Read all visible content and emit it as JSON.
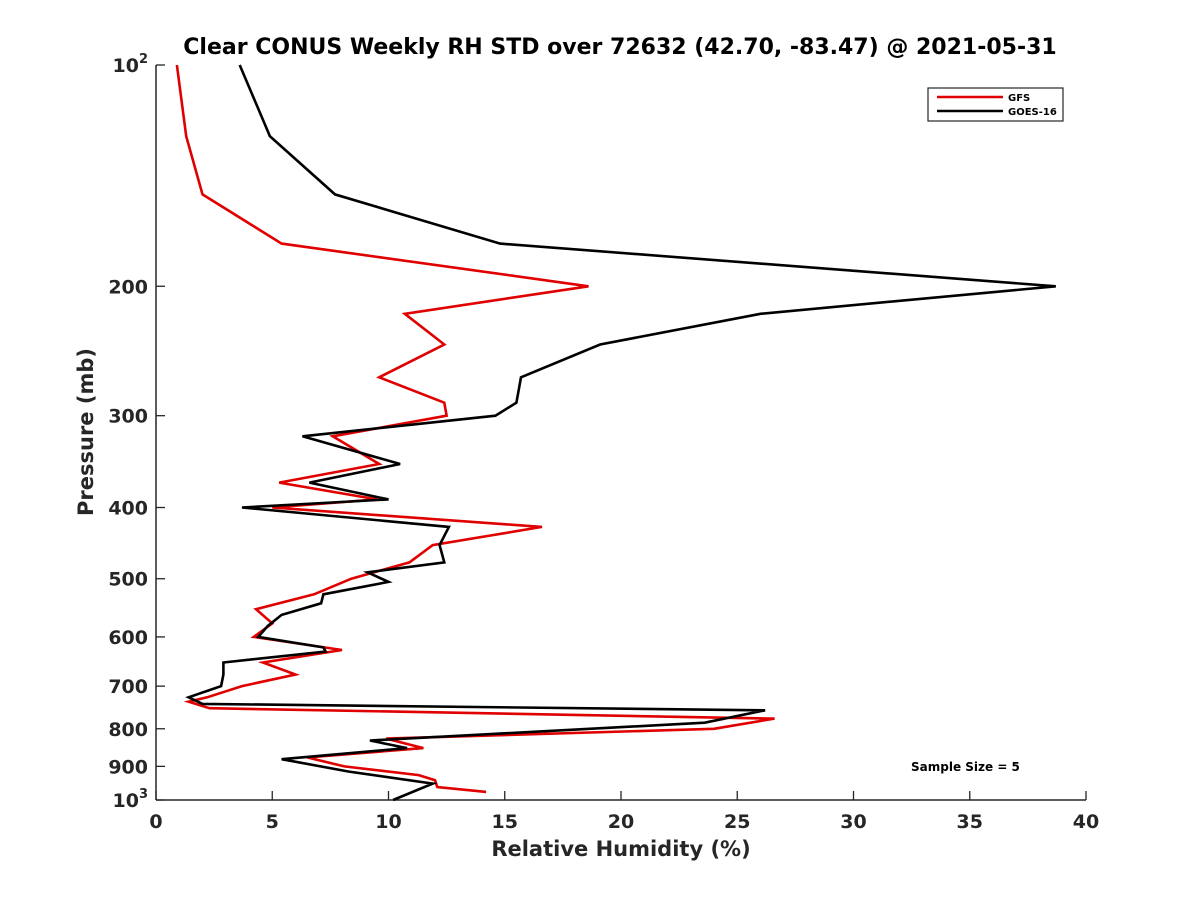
{
  "chart_data": {
    "type": "line",
    "title": "Clear CONUS Weekly RH STD over 72632 (42.70, -83.47) @ 2021-05-31",
    "xlabel": "Relative Humidity (%)",
    "ylabel": "Pressure (mb)",
    "xlim": [
      0,
      40
    ],
    "ylim": [
      100,
      1000
    ],
    "yscale": "log",
    "y_reversed": true,
    "grid": false,
    "legend_position": "top-right",
    "x_ticks": [
      0,
      5,
      10,
      15,
      20,
      25,
      30,
      35,
      40
    ],
    "x_tick_labels": [
      "0",
      "5",
      "10",
      "15",
      "20",
      "25",
      "30",
      "35",
      "40"
    ],
    "y_ticks": [
      100,
      200,
      300,
      400,
      500,
      600,
      700,
      800,
      900,
      1000
    ],
    "y_tick_labels": [
      {
        "base": "10",
        "exp": "2"
      },
      {
        "base": "200"
      },
      {
        "base": "300"
      },
      {
        "base": "400"
      },
      {
        "base": "500"
      },
      {
        "base": "600"
      },
      {
        "base": "700"
      },
      {
        "base": "800"
      },
      {
        "base": "900"
      },
      {
        "base": "10",
        "exp": "3"
      }
    ],
    "annotation": "Sample Size = 5",
    "series": [
      {
        "name": "GFS",
        "color": "#e00000",
        "points": [
          [
            0.9,
            100
          ],
          [
            1.3,
            125
          ],
          [
            2.0,
            150
          ],
          [
            5.4,
            175
          ],
          [
            18.6,
            200
          ],
          [
            10.7,
            218
          ],
          [
            12.4,
            240
          ],
          [
            9.6,
            266
          ],
          [
            12.4,
            288
          ],
          [
            12.5,
            300
          ],
          [
            7.6,
            320
          ],
          [
            9.6,
            349
          ],
          [
            5.3,
            370
          ],
          [
            9.5,
            390
          ],
          [
            5.0,
            400
          ],
          [
            16.6,
            425
          ],
          [
            11.9,
            450
          ],
          [
            10.9,
            475
          ],
          [
            8.4,
            500
          ],
          [
            6.8,
            525
          ],
          [
            4.3,
            550
          ],
          [
            5.0,
            575
          ],
          [
            4.2,
            600
          ],
          [
            8.0,
            625
          ],
          [
            4.6,
            650
          ],
          [
            6.0,
            675
          ],
          [
            3.7,
            700
          ],
          [
            2.2,
            725
          ],
          [
            1.4,
            735
          ],
          [
            2.3,
            750
          ],
          [
            26.6,
            775
          ],
          [
            24.0,
            800
          ],
          [
            9.9,
            825
          ],
          [
            11.5,
            850
          ],
          [
            6.5,
            875
          ],
          [
            8.1,
            900
          ],
          [
            11.3,
            925
          ],
          [
            12.0,
            940
          ],
          [
            12.1,
            960
          ],
          [
            14.2,
            975
          ]
        ]
      },
      {
        "name": "GOES-16",
        "color": "#000000",
        "points": [
          [
            3.6,
            100
          ],
          [
            4.9,
            125
          ],
          [
            7.7,
            150
          ],
          [
            14.8,
            175
          ],
          [
            38.7,
            200
          ],
          [
            26.0,
            218
          ],
          [
            19.1,
            240
          ],
          [
            15.7,
            266
          ],
          [
            15.5,
            288
          ],
          [
            14.6,
            300
          ],
          [
            6.3,
            320
          ],
          [
            10.5,
            349
          ],
          [
            6.6,
            370
          ],
          [
            10.0,
            390
          ],
          [
            3.7,
            400
          ],
          [
            12.6,
            425
          ],
          [
            12.2,
            450
          ],
          [
            12.4,
            475
          ],
          [
            9.1,
            490
          ],
          [
            10.0,
            505
          ],
          [
            7.2,
            525
          ],
          [
            7.1,
            540
          ],
          [
            5.4,
            560
          ],
          [
            4.8,
            580
          ],
          [
            4.4,
            600
          ],
          [
            7.2,
            620
          ],
          [
            7.3,
            628
          ],
          [
            2.9,
            650
          ],
          [
            2.9,
            675
          ],
          [
            2.8,
            700
          ],
          [
            1.4,
            725
          ],
          [
            2.0,
            740
          ],
          [
            26.2,
            755
          ],
          [
            23.6,
            785
          ],
          [
            9.2,
            830
          ],
          [
            10.8,
            850
          ],
          [
            5.4,
            880
          ],
          [
            8.3,
            915
          ],
          [
            11.9,
            950
          ],
          [
            10.2,
            1000
          ]
        ]
      }
    ]
  }
}
